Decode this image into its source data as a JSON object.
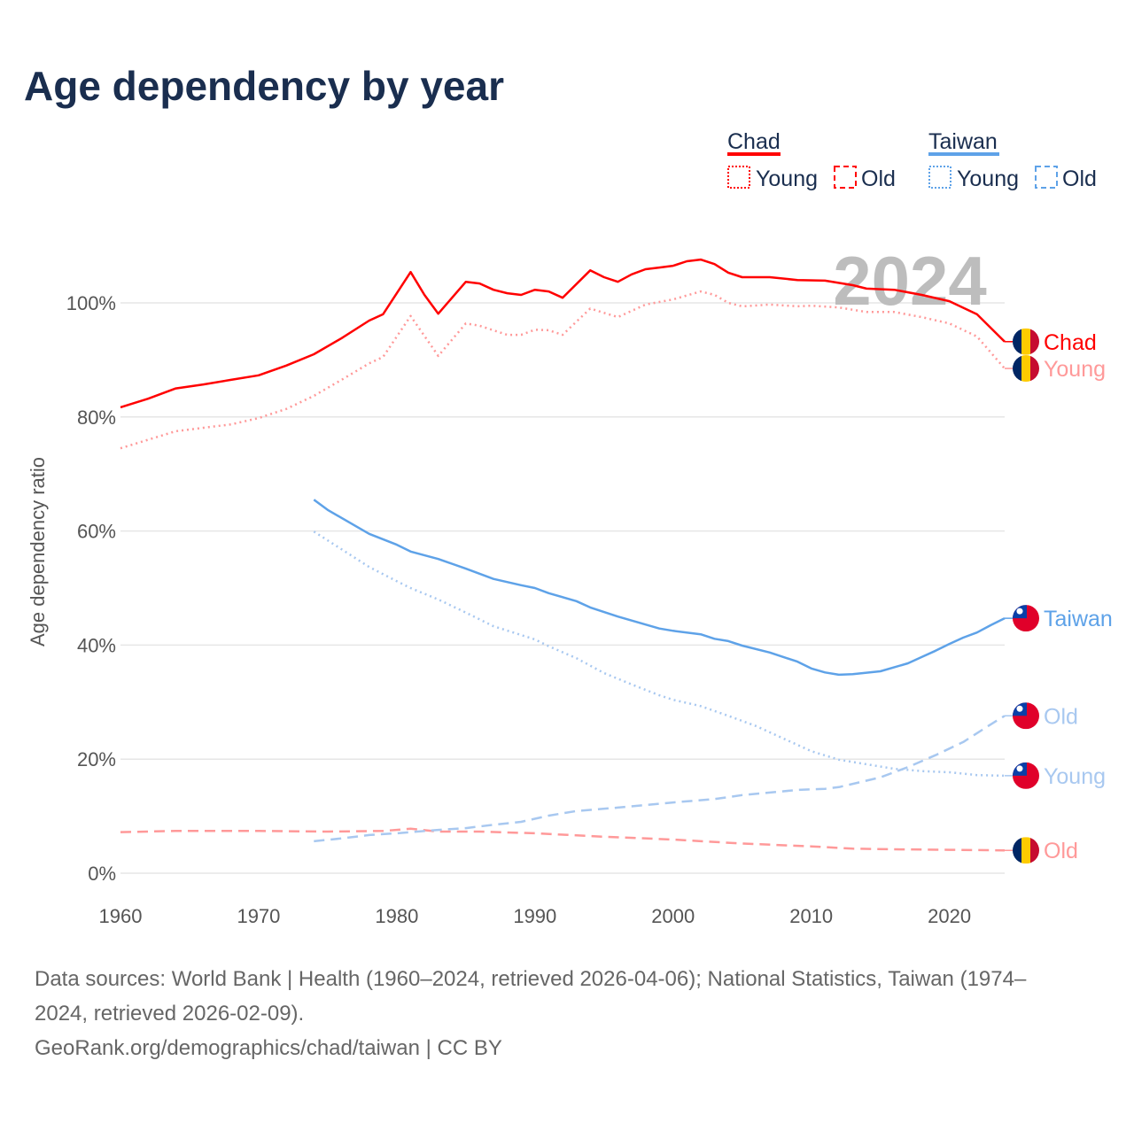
{
  "title": "Age dependency by year",
  "legend": {
    "groups": [
      {
        "name": "Chad",
        "color": "#ff0000",
        "items": [
          "Young",
          "Old"
        ]
      },
      {
        "name": "Taiwan",
        "color": "#5ea2e8",
        "items": [
          "Young",
          "Old"
        ]
      }
    ]
  },
  "current_year": "2024",
  "footer": {
    "sources_line1": "Data sources: World Bank | Health (1960–2024, retrieved 2026-04-06); National Statistics, Taiwan (1974–",
    "sources_line2": "2024, retrieved 2026-02-09).",
    "credit": "GeoRank.org/demographics/chad/taiwan | CC BY"
  },
  "chart_data": {
    "type": "line",
    "title": "Age dependency by year",
    "xlabel": "",
    "ylabel": "Age dependency ratio",
    "xlim": [
      1960,
      2024
    ],
    "ylim": [
      0,
      110
    ],
    "x_ticks": [
      1960,
      1970,
      1980,
      1990,
      2000,
      2010,
      2020
    ],
    "y_ticks": [
      0,
      20,
      40,
      60,
      80,
      100
    ],
    "y_tick_labels": [
      "0%",
      "20%",
      "40%",
      "60%",
      "80%",
      "100%"
    ],
    "grid": true,
    "legend_position": "top-right",
    "series": [
      {
        "name": "Chad",
        "end_label": "Chad",
        "flag": "chad",
        "color": "#ff0000",
        "style": "solid",
        "points": [
          [
            1960,
            81.7
          ],
          [
            1962,
            83.2
          ],
          [
            1964,
            85
          ],
          [
            1966,
            85.7
          ],
          [
            1968,
            86.5
          ],
          [
            1970,
            87.3
          ],
          [
            1972,
            89
          ],
          [
            1974,
            91
          ],
          [
            1976,
            93.8
          ],
          [
            1978,
            96.9
          ],
          [
            1979,
            98
          ],
          [
            1981,
            105.4
          ],
          [
            1982,
            101.4
          ],
          [
            1983,
            98.1
          ],
          [
            1985,
            103.7
          ],
          [
            1986,
            103.4
          ],
          [
            1987,
            102.3
          ],
          [
            1988,
            101.7
          ],
          [
            1989,
            101.4
          ],
          [
            1990,
            102.3
          ],
          [
            1991,
            102
          ],
          [
            1992,
            100.9
          ],
          [
            1994,
            105.7
          ],
          [
            1995,
            104.5
          ],
          [
            1996,
            103.7
          ],
          [
            1997,
            105
          ],
          [
            1998,
            105.9
          ],
          [
            1999,
            106.2
          ],
          [
            2000,
            106.5
          ],
          [
            2001,
            107.3
          ],
          [
            2002,
            107.6
          ],
          [
            2003,
            106.8
          ],
          [
            2004,
            105.3
          ],
          [
            2005,
            104.5
          ],
          [
            2007,
            104.5
          ],
          [
            2009,
            104
          ],
          [
            2011,
            103.9
          ],
          [
            2013,
            103.1
          ],
          [
            2014,
            102.5
          ],
          [
            2016,
            102.3
          ],
          [
            2018,
            101.4
          ],
          [
            2020,
            100.3
          ],
          [
            2022,
            98
          ],
          [
            2024,
            93.2
          ]
        ]
      },
      {
        "name": "Chad Young",
        "end_label": "Young",
        "flag": "chad",
        "color": "#ff9999",
        "style": "dotted",
        "points": [
          [
            1960,
            74.5
          ],
          [
            1964,
            77.5
          ],
          [
            1968,
            78.7
          ],
          [
            1970,
            79.8
          ],
          [
            1972,
            81.4
          ],
          [
            1974,
            83.7
          ],
          [
            1976,
            86.5
          ],
          [
            1978,
            89.4
          ],
          [
            1979,
            90.5
          ],
          [
            1981,
            97.7
          ],
          [
            1983,
            90.7
          ],
          [
            1985,
            96.4
          ],
          [
            1986,
            96
          ],
          [
            1988,
            94.4
          ],
          [
            1989,
            94.4
          ],
          [
            1990,
            95.3
          ],
          [
            1991,
            95.2
          ],
          [
            1992,
            94.4
          ],
          [
            1994,
            99
          ],
          [
            1996,
            97.5
          ],
          [
            1998,
            99.7
          ],
          [
            2000,
            100.6
          ],
          [
            2002,
            102
          ],
          [
            2003,
            101.4
          ],
          [
            2004,
            100
          ],
          [
            2005,
            99.4
          ],
          [
            2007,
            99.7
          ],
          [
            2009,
            99.4
          ],
          [
            2010,
            99.5
          ],
          [
            2012,
            99.2
          ],
          [
            2014,
            98.4
          ],
          [
            2016,
            98.4
          ],
          [
            2018,
            97.5
          ],
          [
            2020,
            96.4
          ],
          [
            2022,
            94.1
          ],
          [
            2024,
            88.5
          ]
        ]
      },
      {
        "name": "Chad Old",
        "end_label": "Old",
        "flag": "chad",
        "color": "#ff9999",
        "style": "dashed",
        "points": [
          [
            1960,
            7.2
          ],
          [
            1964,
            7.4
          ],
          [
            1970,
            7.4
          ],
          [
            1975,
            7.3
          ],
          [
            1979,
            7.4
          ],
          [
            1981,
            7.8
          ],
          [
            1983,
            7.3
          ],
          [
            1986,
            7.3
          ],
          [
            1990,
            7
          ],
          [
            1995,
            6.4
          ],
          [
            2000,
            5.9
          ],
          [
            2005,
            5.2
          ],
          [
            2010,
            4.7
          ],
          [
            2013,
            4.3
          ],
          [
            2016,
            4.2
          ],
          [
            2020,
            4.1
          ],
          [
            2024,
            4.0
          ]
        ]
      },
      {
        "name": "Taiwan",
        "end_label": "Taiwan",
        "flag": "taiwan",
        "color": "#5ea2e8",
        "style": "solid",
        "points": [
          [
            1974,
            65.5
          ],
          [
            1975,
            63.7
          ],
          [
            1978,
            59.5
          ],
          [
            1980,
            57.6
          ],
          [
            1981,
            56.4
          ],
          [
            1983,
            55.1
          ],
          [
            1985,
            53.4
          ],
          [
            1987,
            51.6
          ],
          [
            1989,
            50.5
          ],
          [
            1990,
            50
          ],
          [
            1991,
            49.1
          ],
          [
            1993,
            47.7
          ],
          [
            1994,
            46.6
          ],
          [
            1996,
            45
          ],
          [
            1997,
            44.3
          ],
          [
            1999,
            42.9
          ],
          [
            2000,
            42.5
          ],
          [
            2002,
            41.9
          ],
          [
            2003,
            41.1
          ],
          [
            2004,
            40.7
          ],
          [
            2005,
            39.9
          ],
          [
            2007,
            38.7
          ],
          [
            2009,
            37.1
          ],
          [
            2010,
            35.9
          ],
          [
            2011,
            35.2
          ],
          [
            2012,
            34.8
          ],
          [
            2013,
            34.9
          ],
          [
            2015,
            35.4
          ],
          [
            2017,
            36.8
          ],
          [
            2018,
            37.9
          ],
          [
            2019,
            39
          ],
          [
            2020,
            40.2
          ],
          [
            2021,
            41.3
          ],
          [
            2022,
            42.2
          ],
          [
            2023,
            43.5
          ],
          [
            2024,
            44.7
          ]
        ]
      },
      {
        "name": "Taiwan Old",
        "end_label": "Old",
        "flag": "taiwan",
        "color": "#a8c8f0",
        "style": "dashed",
        "points": [
          [
            1974,
            5.6
          ],
          [
            1976,
            6.1
          ],
          [
            1978,
            6.7
          ],
          [
            1980,
            7
          ],
          [
            1983,
            7.6
          ],
          [
            1985,
            7.9
          ],
          [
            1987,
            8.5
          ],
          [
            1989,
            9
          ],
          [
            1991,
            10.1
          ],
          [
            1993,
            10.9
          ],
          [
            1996,
            11.5
          ],
          [
            2000,
            12.4
          ],
          [
            2003,
            13
          ],
          [
            2005,
            13.7
          ],
          [
            2009,
            14.6
          ],
          [
            2011,
            14.8
          ],
          [
            2012,
            15.1
          ],
          [
            2015,
            16.8
          ],
          [
            2017,
            18.6
          ],
          [
            2019,
            20.7
          ],
          [
            2021,
            23
          ],
          [
            2023,
            26.1
          ],
          [
            2024,
            27.6
          ]
        ]
      },
      {
        "name": "Taiwan Young",
        "end_label": "Young",
        "flag": "taiwan",
        "color": "#a8c8f0",
        "style": "dotted",
        "points": [
          [
            1974,
            59.9
          ],
          [
            1976,
            56.8
          ],
          [
            1978,
            53.7
          ],
          [
            1980,
            51.2
          ],
          [
            1981,
            50
          ],
          [
            1983,
            48
          ],
          [
            1985,
            45.7
          ],
          [
            1987,
            43.3
          ],
          [
            1990,
            41
          ],
          [
            1991,
            39.8
          ],
          [
            1993,
            37.7
          ],
          [
            1995,
            35.1
          ],
          [
            1997,
            33.1
          ],
          [
            1999,
            31.2
          ],
          [
            2000,
            30.4
          ],
          [
            2002,
            29.3
          ],
          [
            2004,
            27.6
          ],
          [
            2006,
            25.8
          ],
          [
            2008,
            23.6
          ],
          [
            2010,
            21.4
          ],
          [
            2012,
            19.9
          ],
          [
            2014,
            19.1
          ],
          [
            2016,
            18.3
          ],
          [
            2018,
            17.9
          ],
          [
            2020,
            17.7
          ],
          [
            2022,
            17.2
          ],
          [
            2024,
            17.1
          ]
        ]
      }
    ]
  }
}
